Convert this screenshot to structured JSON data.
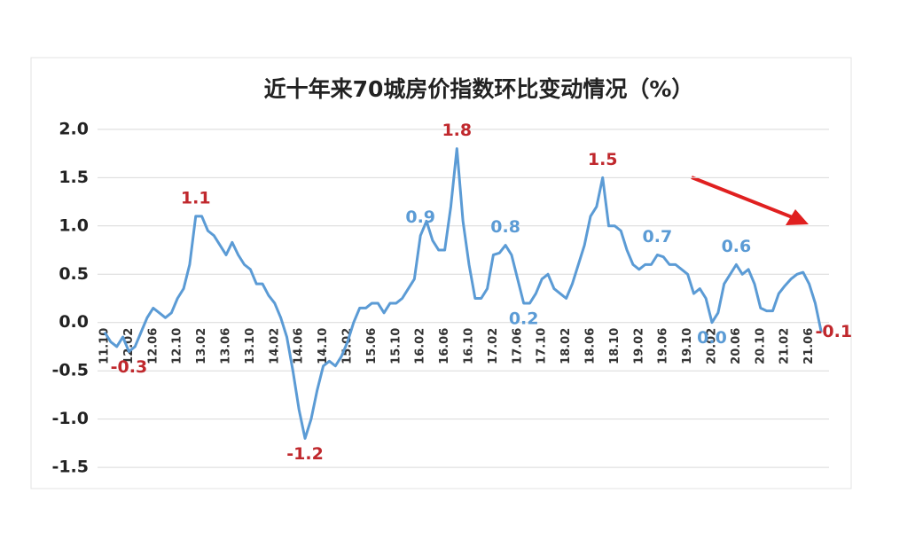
{
  "chart_data": {
    "type": "line",
    "title": "近十年来70城房价指数环比变动情况（%）",
    "categories": [
      "11.10",
      null,
      null,
      null,
      "12.02",
      null,
      null,
      null,
      "12.06",
      null,
      null,
      null,
      "12.10",
      null,
      null,
      null,
      "13.02",
      null,
      null,
      null,
      "13.06",
      null,
      null,
      null,
      "13.10",
      null,
      null,
      null,
      "14.02",
      null,
      null,
      null,
      "14.06",
      null,
      null,
      null,
      "14.10",
      null,
      null,
      null,
      "15.02",
      null,
      null,
      null,
      "15.06",
      null,
      null,
      null,
      "15.10",
      null,
      null,
      null,
      "16.02",
      null,
      null,
      null,
      "16.06",
      null,
      null,
      null,
      "16.10",
      null,
      null,
      null,
      "17.02",
      null,
      null,
      null,
      "17.06",
      null,
      null,
      null,
      "17.10",
      null,
      null,
      null,
      "18.02",
      null,
      null,
      null,
      "18.06",
      null,
      null,
      null,
      "18.10",
      null,
      null,
      null,
      "19.02",
      null,
      null,
      null,
      "19.06",
      null,
      null,
      null,
      "19.10",
      null,
      null,
      null,
      "20.02",
      null,
      null,
      null,
      "20.06",
      null,
      null,
      null,
      "20.10",
      null,
      null,
      null,
      "21.02",
      null,
      null,
      null,
      "21.06",
      null,
      null
    ],
    "series": [
      {
        "color": "#5b9bd5",
        "values": [
          -0.1,
          -0.2,
          -0.25,
          -0.15,
          -0.3,
          -0.25,
          -0.1,
          0.05,
          0.15,
          0.1,
          0.05,
          0.1,
          0.25,
          0.35,
          0.6,
          1.1,
          1.1,
          0.95,
          0.9,
          0.8,
          0.7,
          0.83,
          0.7,
          0.6,
          0.55,
          0.4,
          0.4,
          0.28,
          0.2,
          0.05,
          -0.15,
          -0.5,
          -0.9,
          -1.2,
          -1.0,
          -0.7,
          -0.45,
          -0.4,
          -0.45,
          -0.35,
          -0.2,
          0.0,
          0.15,
          0.15,
          0.2,
          0.2,
          0.1,
          0.2,
          0.2,
          0.25,
          0.35,
          0.45,
          0.9,
          1.05,
          0.85,
          0.75,
          0.75,
          1.2,
          1.8,
          1.05,
          0.6,
          0.25,
          0.25,
          0.35,
          0.7,
          0.72,
          0.8,
          0.7,
          0.45,
          0.2,
          0.2,
          0.3,
          0.45,
          0.5,
          0.35,
          0.3,
          0.25,
          0.4,
          0.6,
          0.8,
          1.1,
          1.2,
          1.5,
          1.0,
          1.0,
          0.95,
          0.75,
          0.6,
          0.55,
          0.6,
          0.6,
          0.7,
          0.68,
          0.6,
          0.6,
          0.55,
          0.5,
          0.3,
          0.35,
          0.25,
          0.0,
          0.1,
          0.4,
          0.5,
          0.6,
          0.5,
          0.55,
          0.4,
          0.15,
          0.12,
          0.12,
          0.3,
          0.38,
          0.45,
          0.5,
          0.52,
          0.4,
          0.2,
          -0.1
        ],
        "value_labels": [
          null,
          null,
          null,
          null,
          "-0.3",
          null,
          null,
          null,
          null,
          null,
          null,
          null,
          null,
          null,
          null,
          "1.1",
          null,
          null,
          null,
          null,
          null,
          null,
          null,
          null,
          null,
          null,
          null,
          null,
          null,
          null,
          null,
          null,
          null,
          "-1.2",
          null,
          null,
          null,
          null,
          null,
          null,
          null,
          null,
          null,
          null,
          null,
          null,
          null,
          null,
          null,
          null,
          null,
          null,
          "0.9",
          null,
          null,
          null,
          null,
          null,
          "1.8",
          null,
          null,
          null,
          null,
          null,
          null,
          null,
          "0.8",
          null,
          null,
          "0.2",
          null,
          null,
          null,
          null,
          null,
          null,
          null,
          null,
          null,
          null,
          null,
          null,
          "1.5",
          null,
          null,
          null,
          null,
          null,
          null,
          null,
          null,
          "0.7",
          null,
          null,
          null,
          null,
          null,
          null,
          null,
          null,
          "0.0",
          null,
          null,
          null,
          "0.6",
          null,
          null,
          null,
          null,
          null,
          null,
          null,
          null,
          null,
          null,
          null,
          null,
          null,
          "-0.1"
        ],
        "value_label_colors": {
          "red": "#c0282d",
          "blue": "#5b9bd5",
          "by_label": {
            "-0.3": "red",
            "1.1": "red",
            "-1.2": "red",
            "1.8": "red",
            "1.5": "red",
            "-0.1": "red",
            "0.9": "blue",
            "0.8": "blue",
            "0.2": "blue",
            "0.7": "blue",
            "0.0": "blue",
            "0.6": "blue"
          }
        }
      }
    ],
    "ylim": [
      -1.6,
      2.1
    ],
    "yticks": [
      {
        "value": 2,
        "label": "2.0"
      },
      1.5,
      {
        "value": 1,
        "label": "1.0"
      },
      0.5,
      {
        "value": 0,
        "label": "0.0"
      },
      -0.5,
      {
        "value": -1,
        "label": "-1.0"
      },
      -1.5
    ],
    "grid": true
  }
}
